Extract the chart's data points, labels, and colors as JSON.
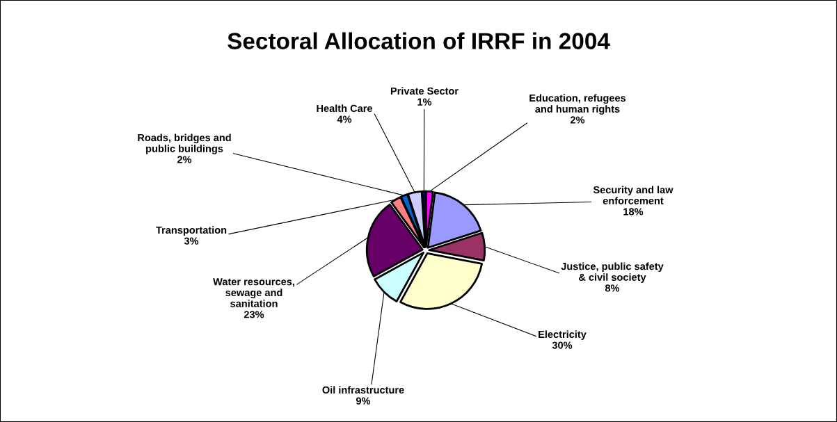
{
  "chart_data": {
    "type": "pie",
    "title": "Sectoral Allocation of IRRF in 2004",
    "categories": [
      "Education, refugees\nand human rights",
      "Security and law\nenforcement",
      "Justice, public safety\n& civil society",
      "Electricity",
      "Oil infrastructure",
      "Water resources,\nsewage and\nsanitation",
      "Transportation",
      "Roads, bridges and\npublic buildings",
      "Health Care",
      "Private Sector"
    ],
    "values": [
      2,
      18,
      8,
      30,
      9,
      23,
      3,
      2,
      4,
      1
    ],
    "value_labels": [
      "2%",
      "18%",
      "8%",
      "30%",
      "9%",
      "23%",
      "3%",
      "2%",
      "4%",
      "1%"
    ],
    "colors": [
      "#ff00ff",
      "#9999ff",
      "#993366",
      "#ffffcc",
      "#ccffff",
      "#660066",
      "#ff8080",
      "#0066cc",
      "#ccccff",
      "#000080"
    ],
    "legend": false
  }
}
